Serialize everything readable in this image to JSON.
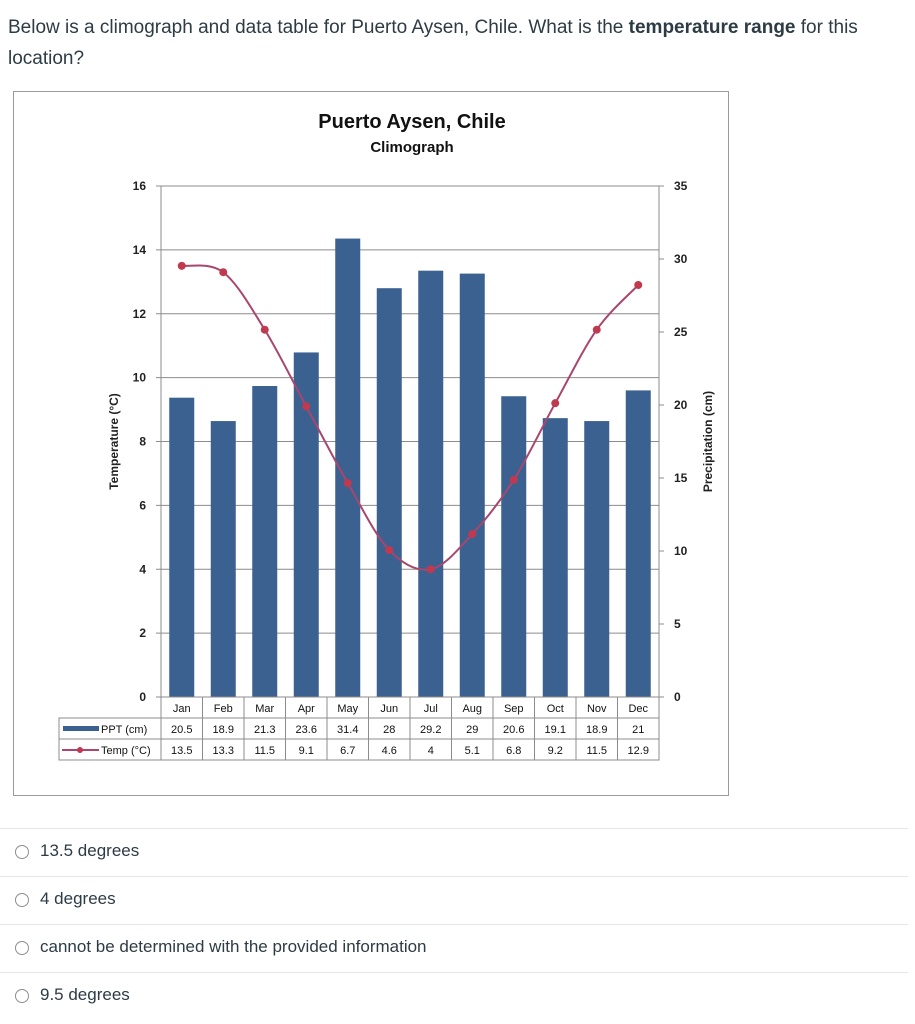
{
  "question": {
    "prefix": "Below is a climograph and data table for Puerto Aysen, Chile. What is the ",
    "bold": "temperature range",
    "suffix": " for this location?"
  },
  "chart_data": {
    "type": "bar+line",
    "title": "Puerto Aysen, Chile",
    "subtitle": "Climograph",
    "categories": [
      "Jan",
      "Feb",
      "Mar",
      "Apr",
      "May",
      "Jun",
      "Jul",
      "Aug",
      "Sep",
      "Oct",
      "Nov",
      "Dec"
    ],
    "series": [
      {
        "name": "PPT (cm)",
        "type": "bar",
        "axis": "right",
        "color": "#3a6190",
        "values": [
          20.5,
          18.9,
          21.3,
          23.6,
          31.4,
          28,
          29.2,
          29,
          20.6,
          19.1,
          18.9,
          21
        ],
        "labels": [
          "20.5",
          "18.9",
          "21.3",
          "23.6",
          "31.4",
          "28",
          "29.2",
          "29",
          "20.6",
          "19.1",
          "18.9",
          "21"
        ]
      },
      {
        "name": "Temp (°C)",
        "type": "line",
        "axis": "left",
        "color": "#a8466e",
        "marker_color": "#c0394f",
        "values": [
          13.5,
          13.3,
          11.5,
          9.1,
          6.7,
          4.6,
          4,
          5.1,
          6.8,
          9.2,
          11.5,
          12.9
        ],
        "labels": [
          "13.5",
          "13.3",
          "11.5",
          "9.1",
          "6.7",
          "4.6",
          "4",
          "5.1",
          "6.8",
          "9.2",
          "11.5",
          "12.9"
        ]
      }
    ],
    "ylabel_left": "Temperature (°C)",
    "ylabel_right": "Precipitation (cm)",
    "ylim_left": [
      0,
      16
    ],
    "yticks_left": [
      "0",
      "2",
      "4",
      "6",
      "8",
      "10",
      "12",
      "14",
      "16"
    ],
    "ylim_right": [
      0,
      35
    ],
    "yticks_right": [
      "0",
      "5",
      "10",
      "15",
      "20",
      "25",
      "30",
      "35"
    ],
    "grid": true,
    "legend": "data table"
  },
  "answers": [
    {
      "label": "13.5 degrees"
    },
    {
      "label": "4 degrees"
    },
    {
      "label": "cannot be determined with the provided information"
    },
    {
      "label": "9.5 degrees"
    }
  ]
}
